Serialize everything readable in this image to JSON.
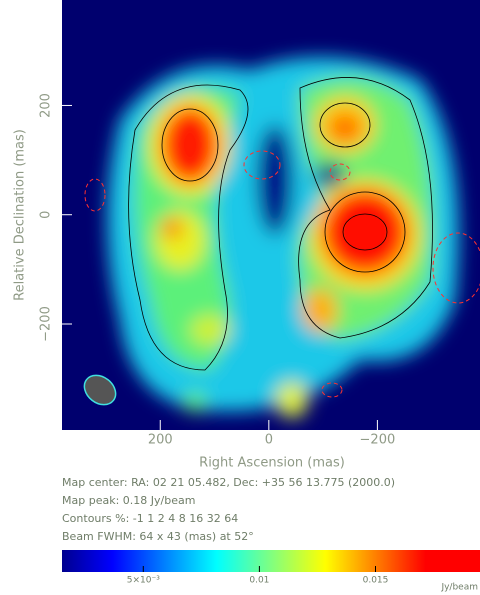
{
  "chart_data": {
    "type": "image",
    "xlabel": "Right Ascension  (mas)",
    "ylabel": "Relative Declination  (mas)",
    "xlim": [
      381,
      -389
    ],
    "xticks": [
      200,
      0,
      {
        "value": -200,
        "label": "−200"
      }
    ],
    "ylim": [
      -394,
      393
    ],
    "yticks": [
      200,
      0,
      {
        "value": -200,
        "label": "−200"
      }
    ],
    "annotations": [
      "Map center:  RA: 02 21 05.482,  Dec: +35 56 13.775 (2000.0)",
      "Map peak: 0.18 Jy/beam",
      "Contours %: -1 1 2 4 8 16 32 64",
      "Beam FWHM: 64 x 43 (mas) at 52°"
    ],
    "colorbar": {
      "label": "Jy/beam",
      "lim": [
        0.0015,
        0.0195
      ],
      "ticks": [
        {
          "value": 0.005,
          "label": "5×10⁻³"
        },
        0.01,
        0.015
      ]
    }
  }
}
